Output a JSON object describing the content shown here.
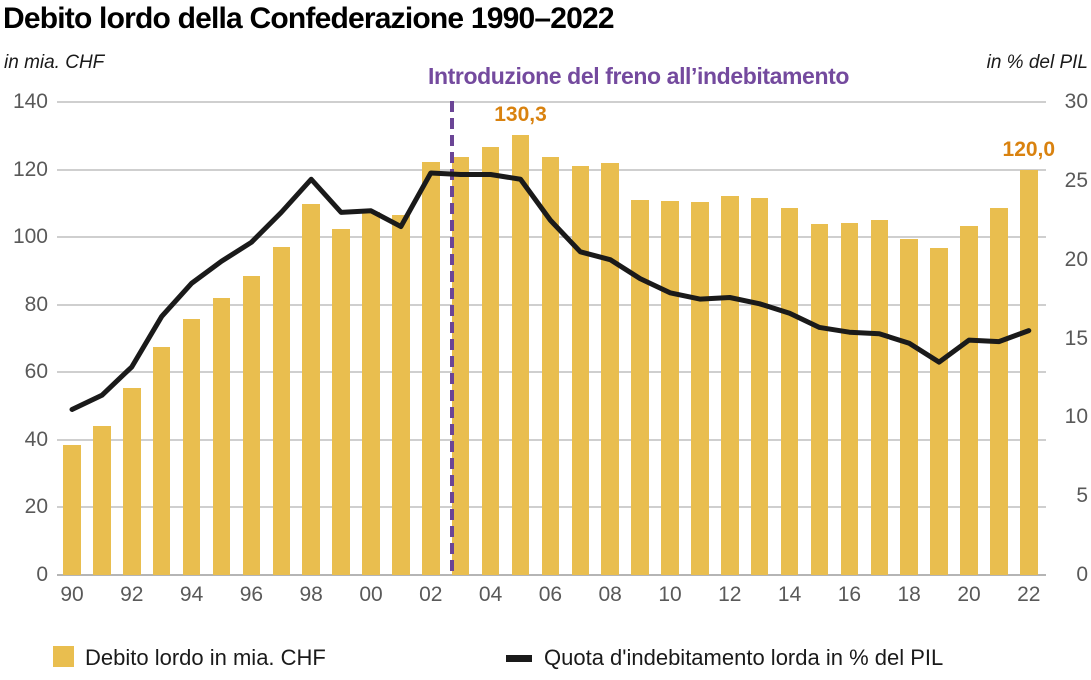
{
  "title": "Debito lordo della Confederazione 1990–2022",
  "axes": {
    "left": {
      "unit": "in mia. CHF",
      "max": 140,
      "ticks": [
        0,
        20,
        40,
        60,
        80,
        100,
        120,
        140
      ]
    },
    "right": {
      "unit": "in % del PIL",
      "max": 30,
      "ticks": [
        0,
        5,
        10,
        15,
        20,
        25,
        30
      ]
    }
  },
  "annotations": {
    "debt_brake_label": "Introduzione del freno all’indebitamento",
    "debt_brake_year": 2003,
    "value_labels": [
      {
        "text": "130,3",
        "year": 2005
      },
      {
        "text": "120,0",
        "year": 2022
      }
    ]
  },
  "legend": [
    {
      "label": "Debito lordo in mia. CHF",
      "marker": "square"
    },
    {
      "label": "Quota d'indebitamento lorda in % del PIL",
      "marker": "line"
    }
  ],
  "colors": {
    "bar": "#E9BE4F",
    "line": "#1A1A1A",
    "accent_purple": "#744A9E",
    "accent_orange": "#D9820F",
    "axis_text": "#595959",
    "gridline": "#CFCFCF"
  },
  "chart_data": {
    "type": "bar",
    "x": [
      1990,
      1991,
      1992,
      1993,
      1994,
      1995,
      1996,
      1997,
      1998,
      1999,
      2000,
      2001,
      2002,
      2003,
      2004,
      2005,
      2006,
      2007,
      2008,
      2009,
      2010,
      2011,
      2012,
      2013,
      2014,
      2015,
      2016,
      2017,
      2018,
      2019,
      2020,
      2021,
      2022
    ],
    "x_tick_labels": [
      "90",
      "92",
      "94",
      "96",
      "98",
      "00",
      "02",
      "04",
      "06",
      "08",
      "10",
      "12",
      "14",
      "16",
      "18",
      "20",
      "22"
    ],
    "series": [
      {
        "name": "Debito lordo in mia. CHF",
        "type": "bar",
        "axis": "left",
        "values": [
          38.5,
          44.0,
          55.3,
          67.4,
          75.7,
          82.0,
          88.5,
          97.1,
          109.8,
          102.5,
          107.4,
          106.5,
          122.3,
          123.6,
          126.7,
          130.3,
          123.6,
          121.0,
          121.8,
          110.9,
          110.6,
          110.4,
          112.2,
          111.5,
          108.7,
          103.8,
          104.2,
          105.2,
          99.4,
          96.9,
          103.4,
          108.5,
          120.0
        ]
      },
      {
        "name": "Quota d'indebitamento lorda in % del PIL",
        "type": "line",
        "axis": "right",
        "values": [
          10.5,
          11.4,
          13.2,
          16.4,
          18.5,
          19.9,
          21.1,
          23.0,
          25.1,
          23.0,
          23.1,
          22.1,
          25.5,
          25.4,
          25.4,
          25.1,
          22.5,
          20.5,
          20.0,
          18.8,
          17.9,
          17.5,
          17.6,
          17.2,
          16.6,
          15.7,
          15.4,
          15.3,
          14.7,
          13.5,
          14.9,
          14.8,
          15.5
        ]
      }
    ],
    "ylim_left": [
      0,
      140
    ],
    "ylim_right": [
      0,
      30
    ],
    "grid": true,
    "legend_position": "bottom"
  }
}
